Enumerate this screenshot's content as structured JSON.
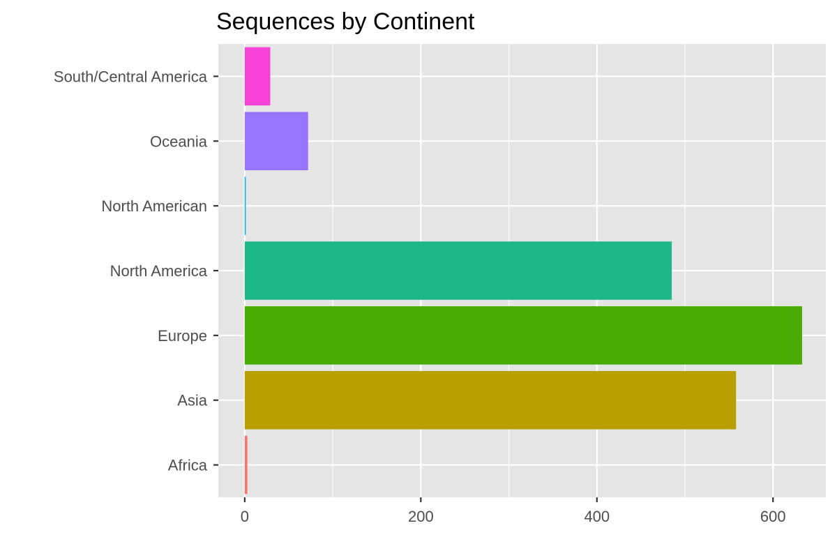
{
  "chart_data": {
    "type": "bar",
    "orientation": "horizontal",
    "title": "Sequences by Continent",
    "xlabel": "",
    "ylabel": "",
    "categories": [
      "Africa",
      "Asia",
      "Europe",
      "North America",
      "North American",
      "Oceania",
      "South/Central America"
    ],
    "values": [
      3,
      558,
      633,
      485,
      1,
      72,
      29
    ],
    "colors": [
      "#F8766D",
      "#B79F00",
      "#49AC04",
      "#1CB888",
      "#00B4EF",
      "#9775FF",
      "#F642D7"
    ],
    "xlim": [
      -30,
      660
    ],
    "xticks": [
      0,
      200,
      400,
      600
    ],
    "grid": true,
    "legend": "none",
    "panel_background": "#E5E5E5"
  }
}
